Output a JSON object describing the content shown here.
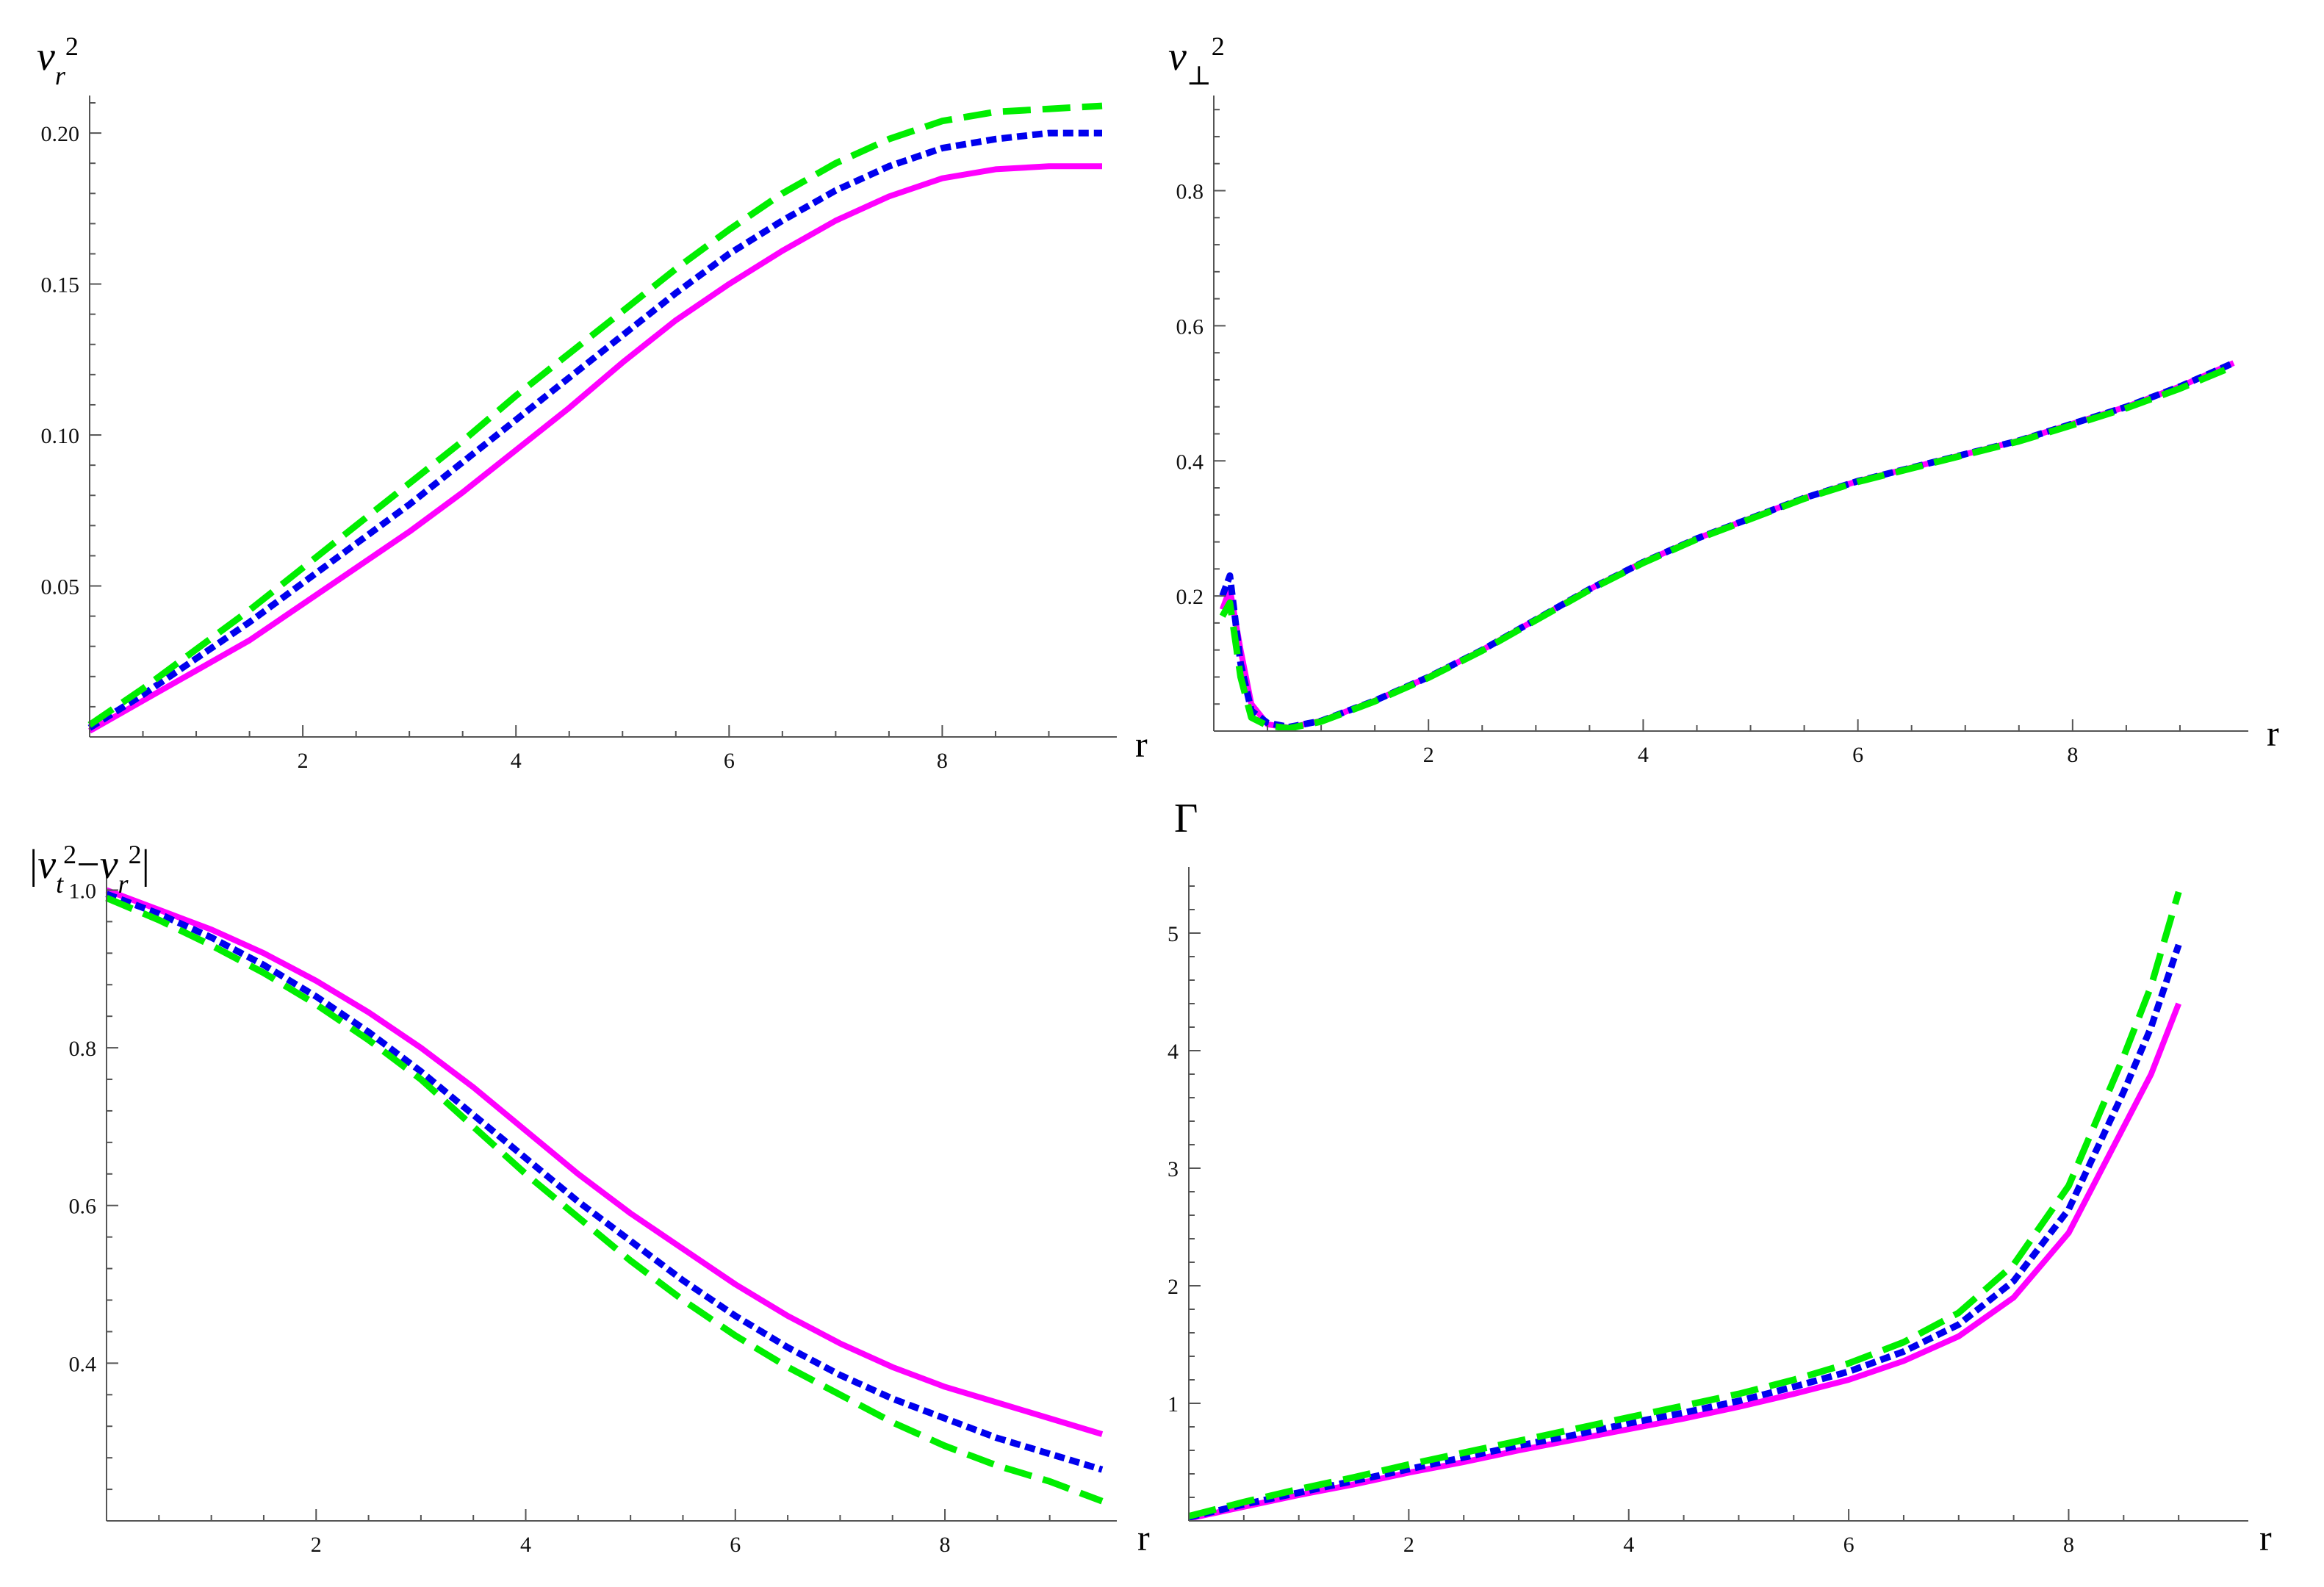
{
  "colors": {
    "series1": "#ff00ff",
    "series2": "#0000ee",
    "series3": "#00ee00",
    "axis": "#555555"
  },
  "chart_data": [
    {
      "type": "line",
      "title": "",
      "ylabel": "v_r^2",
      "xlabel": "r",
      "xlim": [
        0,
        9.5
      ],
      "ylim": [
        0,
        0.21
      ],
      "x_ticks": [
        2,
        4,
        6,
        8
      ],
      "y_ticks": [
        0.05,
        0.1,
        0.15,
        0.2
      ],
      "x_tick_labels": [
        "2",
        "4",
        "6",
        "8"
      ],
      "y_tick_labels": [
        "0.05",
        "0.10",
        "0.15",
        "0.20"
      ],
      "grid": false,
      "series": [
        {
          "style": "solid",
          "color": "#ff00ff",
          "x": [
            0,
            0.5,
            1,
            1.5,
            2,
            2.5,
            3,
            3.5,
            4,
            4.5,
            5,
            5.5,
            6,
            6.5,
            7,
            7.5,
            8,
            8.5,
            9,
            9.5
          ],
          "y": [
            0.002,
            0.012,
            0.022,
            0.032,
            0.044,
            0.056,
            0.068,
            0.081,
            0.095,
            0.109,
            0.124,
            0.138,
            0.15,
            0.161,
            0.171,
            0.179,
            0.185,
            0.188,
            0.189,
            0.189
          ]
        },
        {
          "style": "dotted",
          "color": "#0000ee",
          "x": [
            0,
            0.5,
            1,
            1.5,
            2,
            2.5,
            3,
            3.5,
            4,
            4.5,
            5,
            5.5,
            6,
            6.5,
            7,
            7.5,
            8,
            8.5,
            9,
            9.5
          ],
          "y": [
            0.003,
            0.014,
            0.026,
            0.038,
            0.051,
            0.064,
            0.077,
            0.091,
            0.105,
            0.119,
            0.133,
            0.147,
            0.16,
            0.171,
            0.181,
            0.189,
            0.195,
            0.198,
            0.2,
            0.2
          ]
        },
        {
          "style": "dashed",
          "color": "#00ee00",
          "x": [
            0,
            0.5,
            1,
            1.5,
            2,
            2.5,
            3,
            3.5,
            4,
            4.5,
            5,
            5.5,
            6,
            6.5,
            7,
            7.5,
            8,
            8.5,
            9,
            9.5
          ],
          "y": [
            0.004,
            0.016,
            0.029,
            0.042,
            0.056,
            0.07,
            0.084,
            0.098,
            0.113,
            0.127,
            0.141,
            0.155,
            0.168,
            0.18,
            0.19,
            0.198,
            0.204,
            0.207,
            0.208,
            0.209
          ]
        }
      ]
    },
    {
      "type": "line",
      "title": "",
      "ylabel": "v_⊥^2",
      "xlabel": "r",
      "xlim": [
        0,
        9.5
      ],
      "ylim": [
        0,
        0.93
      ],
      "x_ticks": [
        2,
        4,
        6,
        8
      ],
      "y_ticks": [
        0.2,
        0.4,
        0.6,
        0.8
      ],
      "x_tick_labels": [
        "2",
        "4",
        "6",
        "8"
      ],
      "y_tick_labels": [
        "0.2",
        "0.4",
        "0.6",
        "0.8"
      ],
      "grid": false,
      "series": [
        {
          "style": "solid",
          "color": "#ff00ff",
          "x": [
            0.08,
            0.15,
            0.25,
            0.35,
            0.5,
            0.7,
            1.0,
            1.5,
            2,
            2.5,
            3,
            3.5,
            4,
            4.5,
            5,
            5.5,
            6,
            6.5,
            7,
            7.5,
            8,
            8.5,
            9,
            9.5
          ],
          "y": [
            0.18,
            0.21,
            0.12,
            0.04,
            0.01,
            0.005,
            0.015,
            0.045,
            0.08,
            0.12,
            0.165,
            0.21,
            0.25,
            0.285,
            0.315,
            0.345,
            0.37,
            0.39,
            0.41,
            0.43,
            0.455,
            0.48,
            0.51,
            0.545
          ]
        },
        {
          "style": "dotted",
          "color": "#0000ee",
          "x": [
            0.08,
            0.15,
            0.25,
            0.35,
            0.5,
            0.7,
            1.0,
            1.5,
            2,
            2.5,
            3,
            3.5,
            4,
            4.5,
            5,
            5.5,
            6,
            6.5,
            7,
            7.5,
            8,
            8.5,
            9,
            9.5
          ],
          "y": [
            0.2,
            0.23,
            0.1,
            0.03,
            0.012,
            0.006,
            0.015,
            0.045,
            0.08,
            0.12,
            0.165,
            0.21,
            0.25,
            0.285,
            0.315,
            0.345,
            0.37,
            0.39,
            0.41,
            0.43,
            0.455,
            0.48,
            0.51,
            0.545
          ]
        },
        {
          "style": "dashed",
          "color": "#00ee00",
          "x": [
            0.08,
            0.15,
            0.25,
            0.35,
            0.5,
            0.7,
            1.0,
            1.5,
            2,
            2.5,
            3,
            3.5,
            4,
            4.5,
            5,
            5.5,
            6,
            6.5,
            7,
            7.5,
            8,
            8.5,
            9,
            9.5
          ],
          "y": [
            0.17,
            0.19,
            0.08,
            0.02,
            0.008,
            0.004,
            0.014,
            0.044,
            0.079,
            0.119,
            0.164,
            0.209,
            0.249,
            0.284,
            0.314,
            0.344,
            0.369,
            0.389,
            0.409,
            0.429,
            0.453,
            0.478,
            0.507,
            0.54
          ]
        }
      ]
    },
    {
      "type": "line",
      "title": "",
      "ylabel": "|v_t^2−v_r^2|",
      "xlabel": "",
      "xlim": [
        0,
        9.5
      ],
      "ylim": [
        0.2,
        1.02
      ],
      "x_ticks": [
        2,
        4,
        6,
        8
      ],
      "y_ticks": [
        0.4,
        0.6,
        0.8,
        1.0
      ],
      "x_tick_labels": [
        "2",
        "4",
        "6",
        "8"
      ],
      "y_tick_labels": [
        "0.4",
        "0.6",
        "0.8",
        "1.0"
      ],
      "grid": false,
      "series": [
        {
          "style": "solid",
          "color": "#ff00ff",
          "x": [
            0,
            0.5,
            1,
            1.5,
            2,
            2.5,
            3,
            3.5,
            4,
            4.5,
            5,
            5.5,
            6,
            6.5,
            7,
            7.5,
            8,
            8.5,
            9,
            9.5
          ],
          "y": [
            1.0,
            0.975,
            0.95,
            0.92,
            0.885,
            0.845,
            0.8,
            0.75,
            0.695,
            0.64,
            0.59,
            0.545,
            0.5,
            0.46,
            0.425,
            0.395,
            0.37,
            0.35,
            0.33,
            0.31
          ]
        },
        {
          "style": "dotted",
          "color": "#0000ee",
          "x": [
            0,
            0.5,
            1,
            1.5,
            2,
            2.5,
            3,
            3.5,
            4,
            4.5,
            5,
            5.5,
            6,
            6.5,
            7,
            7.5,
            8,
            8.5,
            9,
            9.5
          ],
          "y": [
            0.995,
            0.97,
            0.94,
            0.905,
            0.865,
            0.82,
            0.77,
            0.715,
            0.66,
            0.605,
            0.555,
            0.505,
            0.46,
            0.42,
            0.385,
            0.355,
            0.33,
            0.305,
            0.285,
            0.265
          ]
        },
        {
          "style": "dashed",
          "color": "#00ee00",
          "x": [
            0,
            0.5,
            1,
            1.5,
            2,
            2.5,
            3,
            3.5,
            4,
            4.5,
            5,
            5.5,
            6,
            6.5,
            7,
            7.5,
            8,
            8.5,
            9,
            9.5
          ],
          "y": [
            0.99,
            0.962,
            0.93,
            0.895,
            0.855,
            0.81,
            0.76,
            0.7,
            0.64,
            0.585,
            0.53,
            0.48,
            0.435,
            0.395,
            0.36,
            0.325,
            0.295,
            0.27,
            0.25,
            0.225
          ]
        }
      ]
    },
    {
      "type": "line",
      "title": "",
      "ylabel": "Γ",
      "xlabel": "r",
      "xlim": [
        0,
        9.5
      ],
      "ylim": [
        0,
        5.5
      ],
      "x_ticks": [
        2,
        4,
        6,
        8
      ],
      "y_ticks": [
        1,
        2,
        3,
        4,
        5
      ],
      "x_tick_labels": [
        "2",
        "4",
        "6",
        "8"
      ],
      "y_tick_labels": [
        "1",
        "2",
        "3",
        "4",
        "5"
      ],
      "x_origin_label": "r",
      "grid": false,
      "series": [
        {
          "style": "solid",
          "color": "#ff00ff",
          "x": [
            0,
            0.5,
            1,
            1.5,
            2,
            2.5,
            3,
            3.5,
            4,
            4.5,
            5,
            5.5,
            6,
            6.5,
            7,
            7.5,
            8,
            8.25,
            8.5,
            8.75,
            9
          ],
          "y": [
            0.02,
            0.12,
            0.22,
            0.31,
            0.41,
            0.5,
            0.6,
            0.69,
            0.78,
            0.87,
            0.97,
            1.08,
            1.2,
            1.36,
            1.57,
            1.9,
            2.45,
            2.9,
            3.35,
            3.8,
            4.4
          ]
        },
        {
          "style": "dotted",
          "color": "#0000ee",
          "x": [
            0,
            0.5,
            1,
            1.5,
            2,
            2.5,
            3,
            3.5,
            4,
            4.5,
            5,
            5.5,
            6,
            6.5,
            7,
            7.5,
            8,
            8.25,
            8.5,
            8.75,
            9
          ],
          "y": [
            0.03,
            0.14,
            0.24,
            0.34,
            0.44,
            0.54,
            0.64,
            0.73,
            0.83,
            0.92,
            1.02,
            1.14,
            1.27,
            1.44,
            1.67,
            2.04,
            2.65,
            3.15,
            3.65,
            4.2,
            4.9
          ]
        },
        {
          "style": "dashed",
          "color": "#00ee00",
          "x": [
            0,
            0.5,
            1,
            1.5,
            2,
            2.5,
            3,
            3.5,
            4,
            4.5,
            5,
            5.5,
            6,
            6.5,
            7,
            7.5,
            8,
            8.25,
            8.5,
            8.75,
            9
          ],
          "y": [
            0.04,
            0.16,
            0.27,
            0.37,
            0.48,
            0.58,
            0.68,
            0.78,
            0.88,
            0.98,
            1.08,
            1.2,
            1.34,
            1.52,
            1.77,
            2.18,
            2.85,
            3.4,
            3.95,
            4.55,
            5.35
          ]
        }
      ]
    }
  ]
}
